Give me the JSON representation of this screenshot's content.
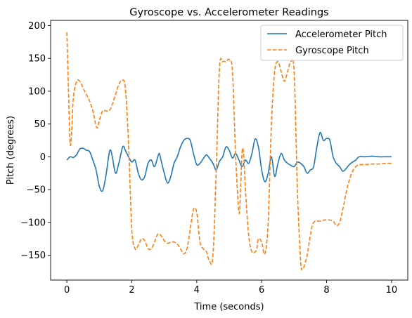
{
  "chart_data": {
    "type": "line",
    "title": "Gyroscope vs. Accelerometer Readings",
    "xlabel": "Time (seconds)",
    "ylabel": "Pitch (degrees)",
    "xlim": [
      -0.5,
      10.5
    ],
    "ylim": [
      -188,
      208
    ],
    "xticks": [
      0,
      2,
      4,
      6,
      8,
      10
    ],
    "xtick_labels": [
      "0",
      "2",
      "4",
      "6",
      "8",
      "10"
    ],
    "yticks": [
      -150,
      -100,
      -50,
      0,
      50,
      100,
      150,
      200
    ],
    "ytick_labels": [
      "−150",
      "−100",
      "−50",
      "0",
      "50",
      "100",
      "150",
      "200"
    ],
    "grid": false,
    "legend_position": "top-right",
    "series": [
      {
        "name": "Accelerometer Pitch",
        "color": "#1f77b4",
        "style": "solid",
        "points": [
          [
            0.0,
            -5
          ],
          [
            0.1,
            0
          ],
          [
            0.2,
            -1
          ],
          [
            0.3,
            3
          ],
          [
            0.4,
            12
          ],
          [
            0.5,
            13
          ],
          [
            0.6,
            10
          ],
          [
            0.7,
            8
          ],
          [
            0.8,
            -5
          ],
          [
            0.9,
            -20
          ],
          [
            1.0,
            -45
          ],
          [
            1.1,
            -52
          ],
          [
            1.2,
            -30
          ],
          [
            1.3,
            5
          ],
          [
            1.35,
            10
          ],
          [
            1.4,
            0
          ],
          [
            1.5,
            -25
          ],
          [
            1.6,
            -10
          ],
          [
            1.7,
            12
          ],
          [
            1.75,
            16
          ],
          [
            1.8,
            10
          ],
          [
            1.9,
            0
          ],
          [
            2.0,
            -8
          ],
          [
            2.1,
            -5
          ],
          [
            2.2,
            -25
          ],
          [
            2.3,
            -35
          ],
          [
            2.4,
            -30
          ],
          [
            2.5,
            -10
          ],
          [
            2.6,
            -5
          ],
          [
            2.7,
            -15
          ],
          [
            2.8,
            0
          ],
          [
            2.85,
            5
          ],
          [
            2.9,
            -5
          ],
          [
            3.0,
            -25
          ],
          [
            3.1,
            -40
          ],
          [
            3.2,
            -30
          ],
          [
            3.3,
            -10
          ],
          [
            3.4,
            0
          ],
          [
            3.5,
            15
          ],
          [
            3.6,
            25
          ],
          [
            3.7,
            28
          ],
          [
            3.8,
            25
          ],
          [
            3.9,
            5
          ],
          [
            4.0,
            -12
          ],
          [
            4.1,
            -10
          ],
          [
            4.2,
            -3
          ],
          [
            4.3,
            3
          ],
          [
            4.4,
            -3
          ],
          [
            4.5,
            -10
          ],
          [
            4.6,
            -20
          ],
          [
            4.7,
            -7
          ],
          [
            4.8,
            0
          ],
          [
            4.9,
            15
          ],
          [
            5.0,
            10
          ],
          [
            5.1,
            -2
          ],
          [
            5.2,
            5
          ],
          [
            5.3,
            -5
          ],
          [
            5.4,
            -15
          ],
          [
            5.5,
            -5
          ],
          [
            5.6,
            -10
          ],
          [
            5.7,
            5
          ],
          [
            5.8,
            27
          ],
          [
            5.9,
            15
          ],
          [
            6.0,
            -20
          ],
          [
            6.1,
            -38
          ],
          [
            6.2,
            -25
          ],
          [
            6.3,
            0
          ],
          [
            6.4,
            -30
          ],
          [
            6.5,
            -10
          ],
          [
            6.6,
            5
          ],
          [
            6.7,
            -5
          ],
          [
            6.8,
            -10
          ],
          [
            6.9,
            -13
          ],
          [
            7.0,
            -15
          ],
          [
            7.1,
            -8
          ],
          [
            7.2,
            -10
          ],
          [
            7.3,
            -15
          ],
          [
            7.4,
            -25
          ],
          [
            7.5,
            -20
          ],
          [
            7.6,
            -15
          ],
          [
            7.7,
            15
          ],
          [
            7.8,
            37
          ],
          [
            7.9,
            25
          ],
          [
            8.0,
            28
          ],
          [
            8.1,
            25
          ],
          [
            8.2,
            0
          ],
          [
            8.3,
            -10
          ],
          [
            8.4,
            -15
          ],
          [
            8.5,
            -22
          ],
          [
            8.6,
            -18
          ],
          [
            8.7,
            -12
          ],
          [
            8.8,
            -8
          ],
          [
            8.9,
            -5
          ],
          [
            9.0,
            0
          ],
          [
            9.2,
            0
          ],
          [
            9.4,
            1
          ],
          [
            9.6,
            0
          ],
          [
            9.8,
            0
          ],
          [
            10.0,
            0
          ]
        ]
      },
      {
        "name": "Gyroscope Pitch",
        "color": "#ff7f0e",
        "style": "dashed",
        "points": [
          [
            0.0,
            190
          ],
          [
            0.05,
            100
          ],
          [
            0.1,
            20
          ],
          [
            0.15,
            40
          ],
          [
            0.2,
            90
          ],
          [
            0.3,
            115
          ],
          [
            0.4,
            115
          ],
          [
            0.5,
            105
          ],
          [
            0.6,
            95
          ],
          [
            0.7,
            85
          ],
          [
            0.8,
            70
          ],
          [
            0.9,
            47
          ],
          [
            0.95,
            45
          ],
          [
            1.0,
            55
          ],
          [
            1.1,
            70
          ],
          [
            1.2,
            70
          ],
          [
            1.3,
            70
          ],
          [
            1.4,
            80
          ],
          [
            1.5,
            95
          ],
          [
            1.6,
            110
          ],
          [
            1.7,
            117
          ],
          [
            1.8,
            105
          ],
          [
            1.9,
            20
          ],
          [
            2.0,
            -110
          ],
          [
            2.1,
            -140
          ],
          [
            2.2,
            -135
          ],
          [
            2.3,
            -125
          ],
          [
            2.4,
            -128
          ],
          [
            2.5,
            -140
          ],
          [
            2.6,
            -140
          ],
          [
            2.7,
            -130
          ],
          [
            2.8,
            -118
          ],
          [
            2.9,
            -120
          ],
          [
            3.0,
            -128
          ],
          [
            3.1,
            -132
          ],
          [
            3.2,
            -130
          ],
          [
            3.3,
            -130
          ],
          [
            3.4,
            -133
          ],
          [
            3.5,
            -140
          ],
          [
            3.6,
            -148
          ],
          [
            3.7,
            -140
          ],
          [
            3.8,
            -110
          ],
          [
            3.9,
            -80
          ],
          [
            4.0,
            -85
          ],
          [
            4.1,
            -130
          ],
          [
            4.2,
            -140
          ],
          [
            4.3,
            -145
          ],
          [
            4.4,
            -160
          ],
          [
            4.5,
            -150
          ],
          [
            4.6,
            -20
          ],
          [
            4.7,
            135
          ],
          [
            4.8,
            145
          ],
          [
            4.9,
            145
          ],
          [
            5.0,
            148
          ],
          [
            5.1,
            130
          ],
          [
            5.2,
            0
          ],
          [
            5.3,
            -85
          ],
          [
            5.35,
            -50
          ],
          [
            5.4,
            10
          ],
          [
            5.45,
            0
          ],
          [
            5.5,
            -50
          ],
          [
            5.6,
            -120
          ],
          [
            5.7,
            -145
          ],
          [
            5.8,
            -145
          ],
          [
            5.85,
            -140
          ],
          [
            5.9,
            -125
          ],
          [
            6.0,
            -130
          ],
          [
            6.1,
            -148
          ],
          [
            6.2,
            -100
          ],
          [
            6.3,
            50
          ],
          [
            6.4,
            130
          ],
          [
            6.5,
            145
          ],
          [
            6.6,
            130
          ],
          [
            6.7,
            115
          ],
          [
            6.8,
            130
          ],
          [
            6.9,
            145
          ],
          [
            7.0,
            130
          ],
          [
            7.1,
            -50
          ],
          [
            7.2,
            -160
          ],
          [
            7.25,
            -170
          ],
          [
            7.3,
            -168
          ],
          [
            7.4,
            -150
          ],
          [
            7.5,
            -120
          ],
          [
            7.6,
            -100
          ],
          [
            7.8,
            -98
          ],
          [
            8.0,
            -96
          ],
          [
            8.2,
            -98
          ],
          [
            8.3,
            -105
          ],
          [
            8.4,
            -100
          ],
          [
            8.5,
            -80
          ],
          [
            8.6,
            -55
          ],
          [
            8.7,
            -35
          ],
          [
            8.8,
            -22
          ],
          [
            8.9,
            -15
          ],
          [
            9.0,
            -12
          ],
          [
            9.2,
            -12
          ],
          [
            9.4,
            -11
          ],
          [
            9.6,
            -11
          ],
          [
            9.8,
            -10
          ],
          [
            10.0,
            -10
          ]
        ]
      }
    ]
  }
}
